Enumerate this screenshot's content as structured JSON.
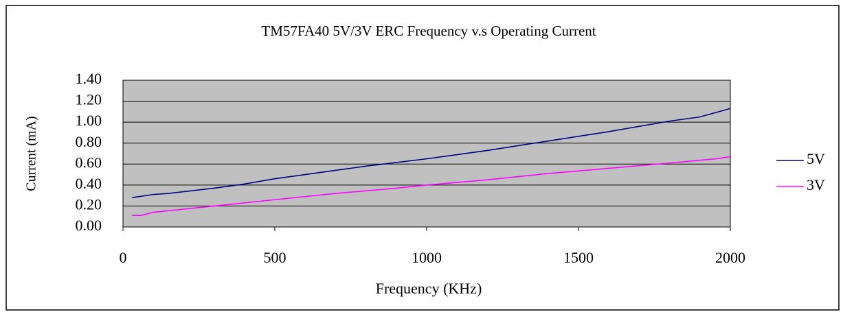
{
  "chart_data": {
    "type": "line",
    "title": "TM57FA40 5V/3V ERC Frequency v.s Operating Current",
    "x_label": "Frequency  (KHz)",
    "y_label": "Current (mA)",
    "xlim": [
      0,
      2000
    ],
    "xticks": [
      0,
      500,
      1000,
      1500,
      2000
    ],
    "ylim": [
      0,
      1.4
    ],
    "yticks": [
      {
        "value": 0,
        "label": "0.00"
      },
      {
        "value": 0.2,
        "label": "0.20"
      },
      {
        "value": 0.4,
        "label": "0.40"
      },
      {
        "value": 0.6,
        "label": "0.60"
      },
      {
        "value": 0.8,
        "label": "0.80"
      },
      {
        "value": 1.0,
        "label": "1.00"
      },
      {
        "value": 1.2,
        "label": "1.20"
      },
      {
        "value": 1.4,
        "label": "1.40"
      }
    ],
    "grid": true,
    "legend": "right",
    "plot_background": "#c0c0c0",
    "series": [
      {
        "name": "5V",
        "color": "#000080",
        "x": [
          30,
          100,
          150,
          300,
          400,
          500,
          600,
          800,
          1000,
          1200,
          1400,
          1600,
          1800,
          1900,
          2000
        ],
        "values": [
          0.28,
          0.31,
          0.32,
          0.37,
          0.41,
          0.46,
          0.5,
          0.58,
          0.65,
          0.73,
          0.82,
          0.91,
          1.01,
          1.05,
          1.13
        ]
      },
      {
        "name": "3V",
        "color": "#ff00ff",
        "x": [
          30,
          60,
          100,
          200,
          300,
          400,
          500,
          700,
          900,
          1000,
          1200,
          1400,
          1600,
          1800,
          1950,
          2000
        ],
        "values": [
          0.11,
          0.11,
          0.14,
          0.17,
          0.2,
          0.23,
          0.26,
          0.32,
          0.37,
          0.4,
          0.45,
          0.51,
          0.56,
          0.61,
          0.65,
          0.67
        ]
      }
    ]
  }
}
